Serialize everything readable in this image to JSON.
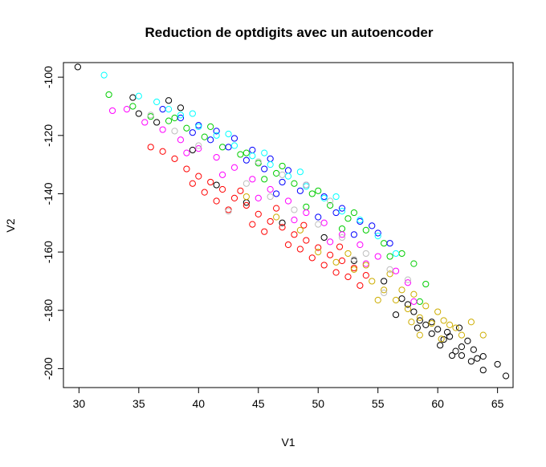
{
  "chart_data": {
    "type": "scatter",
    "title": "Reduction de optdigits avec un autoencoder",
    "xlabel": "V1",
    "ylabel": "V2",
    "xlim": [
      28.7,
      66.3
    ],
    "ylim": [
      -206.5,
      -95.0
    ],
    "xticks": [
      30,
      35,
      40,
      45,
      50,
      55,
      60,
      65
    ],
    "yticks": [
      -100,
      -120,
      -140,
      -160,
      -180,
      -200
    ],
    "marker": "open-circle",
    "grid": false,
    "legend": "none",
    "palette": [
      "#000000",
      "#FF0000",
      "#00CD00",
      "#0000FF",
      "#00FFFF",
      "#FF00FF",
      "#CDAD00",
      "#BEBEBE"
    ],
    "series": [
      {
        "color": "#000000",
        "points": [
          [
            29.9,
            -96.5
          ],
          [
            34.5,
            -107.0
          ],
          [
            35.0,
            -112.5
          ],
          [
            37.5,
            -108.0
          ],
          [
            36.5,
            -115.5
          ],
          [
            38.5,
            -110.5
          ],
          [
            39.5,
            -125.0
          ],
          [
            41.5,
            -137.0
          ],
          [
            44.0,
            -143.0
          ],
          [
            47.0,
            -150.0
          ],
          [
            50.5,
            -155.0
          ],
          [
            53.0,
            -163.0
          ],
          [
            55.5,
            -170.0
          ],
          [
            57.0,
            -176.0
          ],
          [
            58.0,
            -180.5
          ],
          [
            58.5,
            -183.5
          ],
          [
            59.0,
            -185.0
          ],
          [
            59.5,
            -188.0
          ],
          [
            60.0,
            -186.5
          ],
          [
            60.5,
            -190.0
          ],
          [
            60.2,
            -192.0
          ],
          [
            61.0,
            -189.0
          ],
          [
            61.5,
            -194.0
          ],
          [
            62.0,
            -192.5
          ],
          [
            62.0,
            -195.5
          ],
          [
            62.5,
            -190.5
          ],
          [
            62.8,
            -197.5
          ],
          [
            63.0,
            -193.5
          ],
          [
            63.3,
            -196.5
          ],
          [
            63.8,
            -195.8
          ],
          [
            63.8,
            -200.5
          ],
          [
            65.0,
            -198.5
          ],
          [
            65.7,
            -202.5
          ],
          [
            59.5,
            -184.0
          ],
          [
            60.8,
            -187.5
          ],
          [
            61.8,
            -186.0
          ],
          [
            57.5,
            -178.0
          ],
          [
            56.5,
            -181.5
          ],
          [
            58.3,
            -186.0
          ],
          [
            61.2,
            -195.5
          ]
        ]
      },
      {
        "color": "#FF0000",
        "points": [
          [
            38.0,
            -128.0
          ],
          [
            39.0,
            -131.5
          ],
          [
            40.0,
            -134.0
          ],
          [
            41.0,
            -136.0
          ],
          [
            42.0,
            -138.5
          ],
          [
            43.0,
            -141.5
          ],
          [
            44.0,
            -144.0
          ],
          [
            45.0,
            -147.0
          ],
          [
            46.0,
            -149.5
          ],
          [
            47.0,
            -151.5
          ],
          [
            48.0,
            -154.0
          ],
          [
            49.0,
            -156.0
          ],
          [
            50.0,
            -158.5
          ],
          [
            51.0,
            -161.0
          ],
          [
            52.0,
            -163.0
          ],
          [
            53.0,
            -165.5
          ],
          [
            54.0,
            -168.0
          ],
          [
            49.5,
            -162.0
          ],
          [
            50.5,
            -164.5
          ],
          [
            51.5,
            -167.0
          ],
          [
            47.5,
            -157.5
          ],
          [
            48.5,
            -159.0
          ],
          [
            45.5,
            -153.0
          ],
          [
            44.5,
            -150.5
          ],
          [
            42.5,
            -145.5
          ],
          [
            41.5,
            -142.5
          ],
          [
            40.5,
            -139.5
          ],
          [
            39.5,
            -136.5
          ],
          [
            37.0,
            -125.5
          ],
          [
            36.0,
            -124.0
          ],
          [
            52.5,
            -168.5
          ],
          [
            53.5,
            -171.5
          ],
          [
            46.5,
            -145.0
          ],
          [
            43.5,
            -139.0
          ],
          [
            48.8,
            -150.8
          ],
          [
            51.8,
            -158.2
          ]
        ]
      },
      {
        "color": "#00CD00",
        "points": [
          [
            32.5,
            -106.0
          ],
          [
            34.5,
            -110.0
          ],
          [
            36.0,
            -113.5
          ],
          [
            37.5,
            -115.0
          ],
          [
            39.0,
            -117.5
          ],
          [
            40.5,
            -120.5
          ],
          [
            42.0,
            -124.0
          ],
          [
            43.5,
            -126.5
          ],
          [
            45.0,
            -129.5
          ],
          [
            46.5,
            -133.0
          ],
          [
            48.0,
            -136.5
          ],
          [
            49.5,
            -140.0
          ],
          [
            51.0,
            -144.0
          ],
          [
            52.5,
            -148.5
          ],
          [
            54.0,
            -152.5
          ],
          [
            55.5,
            -157.0
          ],
          [
            57.0,
            -160.5
          ],
          [
            58.0,
            -164.0
          ],
          [
            59.0,
            -171.0
          ],
          [
            58.5,
            -177.0
          ],
          [
            44.0,
            -126.0
          ],
          [
            47.0,
            -130.5
          ],
          [
            50.0,
            -139.0
          ],
          [
            53.0,
            -146.5
          ],
          [
            41.0,
            -117.0
          ],
          [
            38.0,
            -114.0
          ],
          [
            56.0,
            -161.5
          ],
          [
            45.5,
            -135.0
          ],
          [
            49.0,
            -144.5
          ],
          [
            52.0,
            -152.0
          ]
        ]
      },
      {
        "color": "#0000FF",
        "points": [
          [
            37.0,
            -111.0
          ],
          [
            38.5,
            -114.0
          ],
          [
            40.0,
            -116.5
          ],
          [
            41.5,
            -118.5
          ],
          [
            43.0,
            -121.0
          ],
          [
            44.5,
            -125.0
          ],
          [
            46.0,
            -128.0
          ],
          [
            47.5,
            -132.0
          ],
          [
            49.0,
            -137.0
          ],
          [
            50.5,
            -141.0
          ],
          [
            52.0,
            -145.0
          ],
          [
            53.5,
            -149.5
          ],
          [
            55.0,
            -153.5
          ],
          [
            56.0,
            -157.0
          ],
          [
            54.5,
            -151.0
          ],
          [
            51.5,
            -146.5
          ],
          [
            48.5,
            -139.0
          ],
          [
            45.5,
            -131.5
          ],
          [
            42.5,
            -124.0
          ],
          [
            39.5,
            -119.0
          ],
          [
            50.0,
            -148.0
          ],
          [
            47.0,
            -136.0
          ],
          [
            44.0,
            -128.5
          ],
          [
            41.0,
            -121.5
          ],
          [
            53.0,
            -154.0
          ],
          [
            46.5,
            -140.0
          ]
        ]
      },
      {
        "color": "#00FFFF",
        "points": [
          [
            32.1,
            -99.3
          ],
          [
            35.0,
            -106.5
          ],
          [
            36.5,
            -108.5
          ],
          [
            37.5,
            -111.0
          ],
          [
            38.5,
            -113.0
          ],
          [
            40.0,
            -117.0
          ],
          [
            41.5,
            -120.0
          ],
          [
            43.0,
            -123.5
          ],
          [
            44.5,
            -127.0
          ],
          [
            46.0,
            -130.0
          ],
          [
            47.5,
            -134.0
          ],
          [
            49.0,
            -137.5
          ],
          [
            50.5,
            -141.5
          ],
          [
            52.0,
            -146.0
          ],
          [
            53.5,
            -149.0
          ],
          [
            55.0,
            -154.5
          ],
          [
            56.5,
            -160.5
          ],
          [
            48.5,
            -132.5
          ],
          [
            45.5,
            -126.0
          ],
          [
            42.5,
            -119.5
          ],
          [
            39.5,
            -112.5
          ],
          [
            51.5,
            -141.0
          ]
        ]
      },
      {
        "color": "#FF00FF",
        "points": [
          [
            32.8,
            -111.5
          ],
          [
            34.0,
            -111.0
          ],
          [
            35.5,
            -115.5
          ],
          [
            37.0,
            -118.0
          ],
          [
            38.5,
            -121.5
          ],
          [
            40.0,
            -124.5
          ],
          [
            41.5,
            -127.5
          ],
          [
            43.0,
            -131.0
          ],
          [
            44.5,
            -135.0
          ],
          [
            46.0,
            -138.5
          ],
          [
            47.5,
            -142.5
          ],
          [
            49.0,
            -146.5
          ],
          [
            50.5,
            -150.0
          ],
          [
            52.0,
            -154.0
          ],
          [
            53.5,
            -157.5
          ],
          [
            55.0,
            -161.5
          ],
          [
            56.5,
            -166.5
          ],
          [
            57.5,
            -170.5
          ],
          [
            58.0,
            -177.0
          ],
          [
            45.0,
            -141.5
          ],
          [
            48.0,
            -149.0
          ],
          [
            51.0,
            -156.5
          ],
          [
            42.0,
            -133.5
          ],
          [
            39.0,
            -126.0
          ],
          [
            54.0,
            -164.0
          ]
        ]
      },
      {
        "color": "#CDAD00",
        "points": [
          [
            50.0,
            -160.0
          ],
          [
            51.5,
            -163.5
          ],
          [
            53.0,
            -166.0
          ],
          [
            54.5,
            -170.0
          ],
          [
            55.5,
            -173.0
          ],
          [
            56.5,
            -176.5
          ],
          [
            57.5,
            -179.5
          ],
          [
            58.5,
            -182.5
          ],
          [
            59.5,
            -184.5
          ],
          [
            60.5,
            -183.5
          ],
          [
            61.5,
            -186.0
          ],
          [
            62.0,
            -188.5
          ],
          [
            62.8,
            -184.0
          ],
          [
            63.8,
            -188.5
          ],
          [
            58.0,
            -174.5
          ],
          [
            57.0,
            -173.0
          ],
          [
            59.0,
            -178.5
          ],
          [
            60.0,
            -180.5
          ],
          [
            56.0,
            -167.5
          ],
          [
            54.0,
            -164.5
          ],
          [
            52.5,
            -160.5
          ],
          [
            55.0,
            -176.5
          ],
          [
            58.5,
            -188.5
          ],
          [
            61.0,
            -185.0
          ],
          [
            57.8,
            -184.0
          ],
          [
            60.3,
            -189.8
          ],
          [
            48.5,
            -152.5
          ],
          [
            46.5,
            -148.0
          ],
          [
            44.0,
            -141.0
          ]
        ]
      },
      {
        "color": "#BEBEBE",
        "points": [
          [
            36.0,
            -113.0
          ],
          [
            38.0,
            -118.5
          ],
          [
            40.0,
            -123.5
          ],
          [
            42.5,
            -146.0
          ],
          [
            44.0,
            -136.5
          ],
          [
            46.0,
            -141.0
          ],
          [
            48.0,
            -145.5
          ],
          [
            50.0,
            -150.5
          ],
          [
            52.0,
            -155.0
          ],
          [
            54.0,
            -160.5
          ],
          [
            56.0,
            -166.0
          ],
          [
            57.5,
            -169.5
          ],
          [
            49.0,
            -137.0
          ],
          [
            51.0,
            -142.5
          ],
          [
            47.0,
            -133.5
          ],
          [
            45.0,
            -129.0
          ],
          [
            53.0,
            -162.5
          ],
          [
            55.5,
            -174.0
          ]
        ]
      }
    ]
  }
}
